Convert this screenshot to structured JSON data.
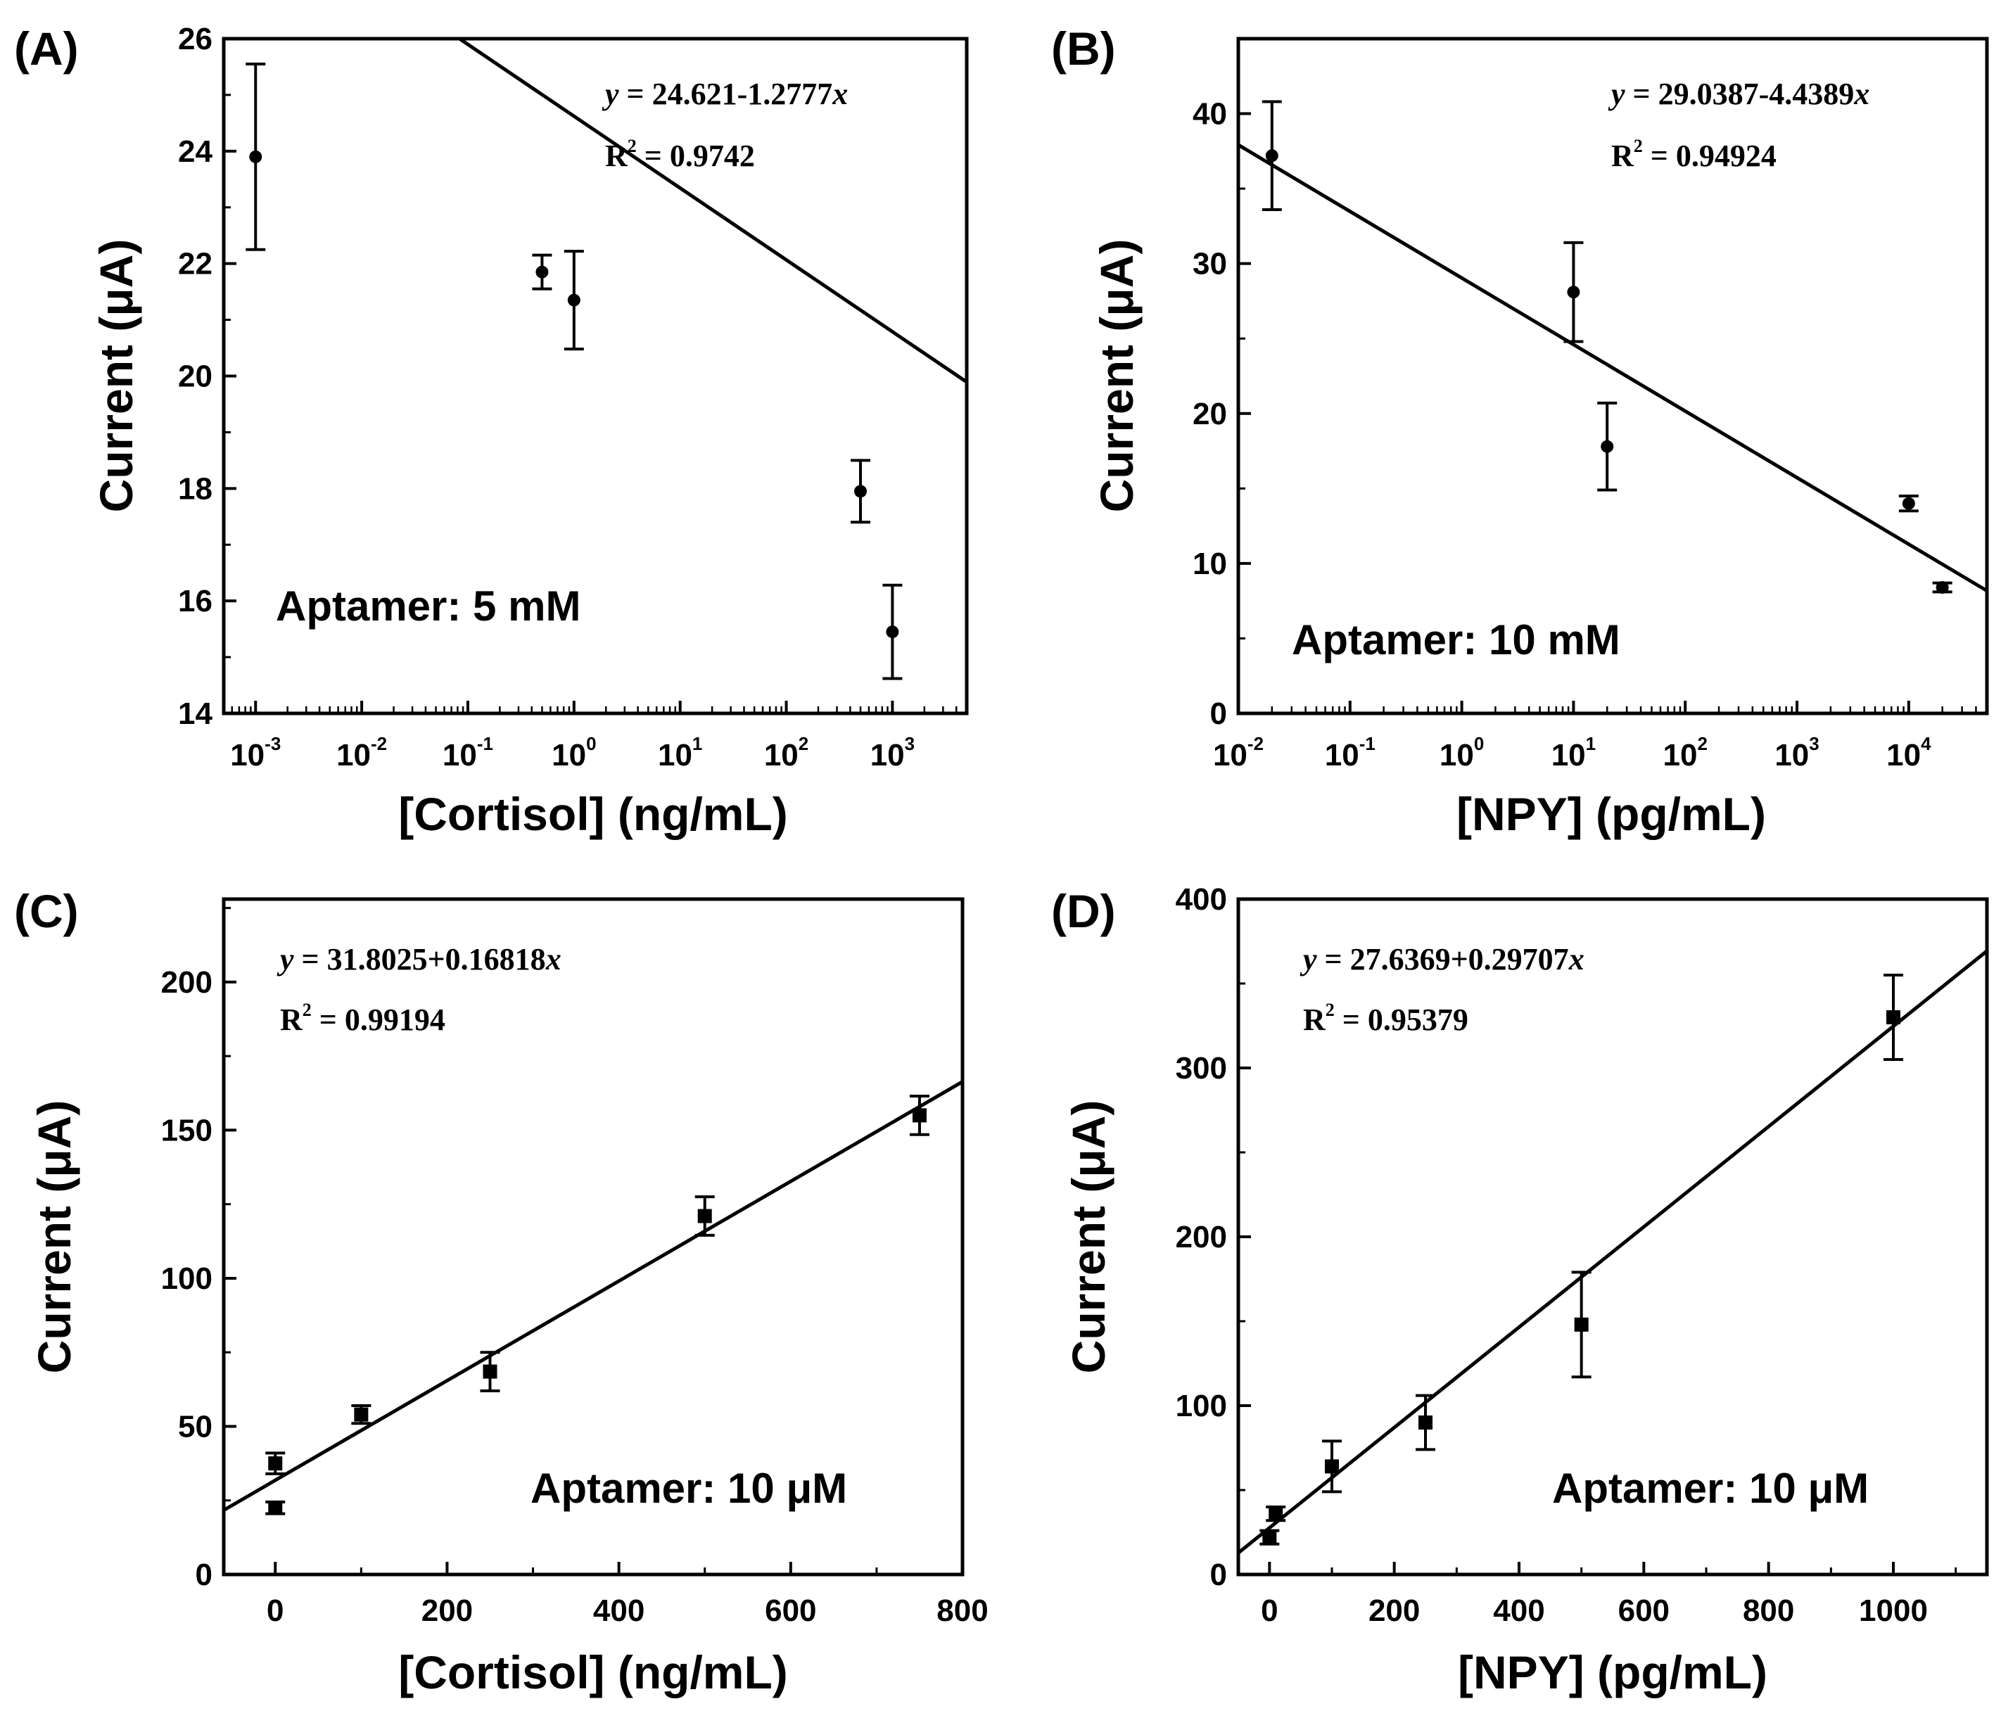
{
  "figure": {
    "background": "#ffffff",
    "ink": "#000000"
  },
  "chart_data": [
    {
      "id": "A",
      "panel_label": "(A)",
      "type": "scatter",
      "xscale": "log",
      "xlim_log10": [
        -3.3,
        3.7
      ],
      "ylim": [
        14,
        26
      ],
      "x_ticks": [
        {
          "base": "10",
          "exp": "-3"
        },
        {
          "base": "10",
          "exp": "-2"
        },
        {
          "base": "10",
          "exp": "-1"
        },
        {
          "base": "10",
          "exp": "0"
        },
        {
          "base": "10",
          "exp": "1"
        },
        {
          "base": "10",
          "exp": "2"
        },
        {
          "base": "10",
          "exp": "3"
        }
      ],
      "y_ticks": [
        "14",
        "16",
        "18",
        "20",
        "22",
        "24",
        "26"
      ],
      "xlabel": "[Cortisol] (ng/mL)",
      "ylabel": "Current (μA)",
      "marker": "circle",
      "points": [
        {
          "x": 0.001,
          "y": 23.9,
          "err": 1.65
        },
        {
          "x": 0.5,
          "y": 21.85,
          "err": 0.3
        },
        {
          "x": 1,
          "y": 21.35,
          "err": 0.87
        },
        {
          "x": 500,
          "y": 17.95,
          "err": 0.55
        },
        {
          "x": 1000,
          "y": 15.45,
          "err": 0.83
        }
      ],
      "fit": {
        "intercept": 24.621,
        "slope": -1.2777,
        "on": "log10x"
      },
      "equation": {
        "lhs": "y",
        "rhs": " = 24.621-1.2777",
        "var": "x"
      },
      "r2": {
        "label": "R",
        "sup": "2",
        "value": " = 0.9742"
      },
      "annotation": "Aptamer: 5 mM"
    },
    {
      "id": "B",
      "panel_label": "(B)",
      "type": "scatter",
      "xscale": "log",
      "xlim_log10": [
        -2,
        4.7
      ],
      "ylim": [
        0,
        45
      ],
      "x_ticks": [
        {
          "base": "10",
          "exp": "-2"
        },
        {
          "base": "10",
          "exp": "-1"
        },
        {
          "base": "10",
          "exp": "0"
        },
        {
          "base": "10",
          "exp": "1"
        },
        {
          "base": "10",
          "exp": "2"
        },
        {
          "base": "10",
          "exp": "3"
        },
        {
          "base": "10",
          "exp": "4"
        }
      ],
      "y_ticks": [
        "0",
        "10",
        "20",
        "30",
        "40"
      ],
      "xlabel": "[NPY] (pg/mL)",
      "ylabel": "Current (μA)",
      "marker": "circle",
      "points": [
        {
          "x": 0.02,
          "y": 37.2,
          "err": 3.6
        },
        {
          "x": 10,
          "y": 28.1,
          "err": 3.3
        },
        {
          "x": 20,
          "y": 17.8,
          "err": 2.9
        },
        {
          "x": 10000,
          "y": 14.0,
          "err": 0.5
        },
        {
          "x": 20000,
          "y": 8.4,
          "err": 0.3
        }
      ],
      "fit": {
        "intercept": 29.0387,
        "slope": -4.4389,
        "on": "log10x"
      },
      "equation": {
        "lhs": "y",
        "rhs": " = 29.0387-4.4389",
        "var": "x"
      },
      "r2": {
        "label": "R",
        "sup": "2",
        "value": " = 0.94924"
      },
      "annotation": "Aptamer: 10 mM"
    },
    {
      "id": "C",
      "panel_label": "(C)",
      "type": "scatter",
      "xscale": "linear",
      "xlim": [
        -60,
        800
      ],
      "ylim": [
        0,
        228
      ],
      "x_ticks": [
        "0",
        "200",
        "400",
        "600",
        "800"
      ],
      "y_ticks": [
        "0",
        "50",
        "100",
        "150",
        "200"
      ],
      "xlabel": "[Cortisol] (ng/mL)",
      "ylabel": "Current (μA)",
      "marker": "square",
      "points": [
        {
          "x": 0,
          "y": 37.5,
          "err": 3.5
        },
        {
          "x": 0,
          "y": 22.5,
          "err": 2
        },
        {
          "x": 100,
          "y": 54,
          "err": 3
        },
        {
          "x": 250,
          "y": 68.5,
          "err": 6.5
        },
        {
          "x": 500,
          "y": 121,
          "err": 6.5
        },
        {
          "x": 750,
          "y": 155,
          "err": 6.5
        }
      ],
      "fit": {
        "intercept": 31.8025,
        "slope": 0.16818,
        "on": "x"
      },
      "equation": {
        "lhs": "y",
        "rhs": " = 31.8025+0.16818",
        "var": "x"
      },
      "r2": {
        "label": "R",
        "sup": "2",
        "value": " = 0.99194"
      },
      "annotation": "Aptamer: 10 μM"
    },
    {
      "id": "D",
      "panel_label": "(D)",
      "type": "scatter",
      "xscale": "linear",
      "xlim": [
        -50,
        1150
      ],
      "ylim": [
        0,
        400
      ],
      "x_ticks": [
        "0",
        "200",
        "400",
        "600",
        "800",
        "1000"
      ],
      "y_ticks": [
        "0",
        "100",
        "200",
        "300",
        "400"
      ],
      "xlabel": "[NPY] (pg/mL)",
      "ylabel": "Current (μA)",
      "marker": "square",
      "points": [
        {
          "x": 0,
          "y": 22,
          "err": 4
        },
        {
          "x": 10,
          "y": 36,
          "err": 4
        },
        {
          "x": 100,
          "y": 64,
          "err": 15
        },
        {
          "x": 250,
          "y": 90,
          "err": 16
        },
        {
          "x": 500,
          "y": 148,
          "err": 31
        },
        {
          "x": 1000,
          "y": 330,
          "err": 25
        }
      ],
      "fit": {
        "intercept": 27.6369,
        "slope": 0.29707,
        "on": "x"
      },
      "equation": {
        "lhs": "y",
        "rhs": " = 27.6369+0.29707",
        "var": "x"
      },
      "r2": {
        "label": "R",
        "sup": "2",
        "value": " = 0.95379"
      },
      "annotation": "Aptamer: 10 μM"
    }
  ]
}
